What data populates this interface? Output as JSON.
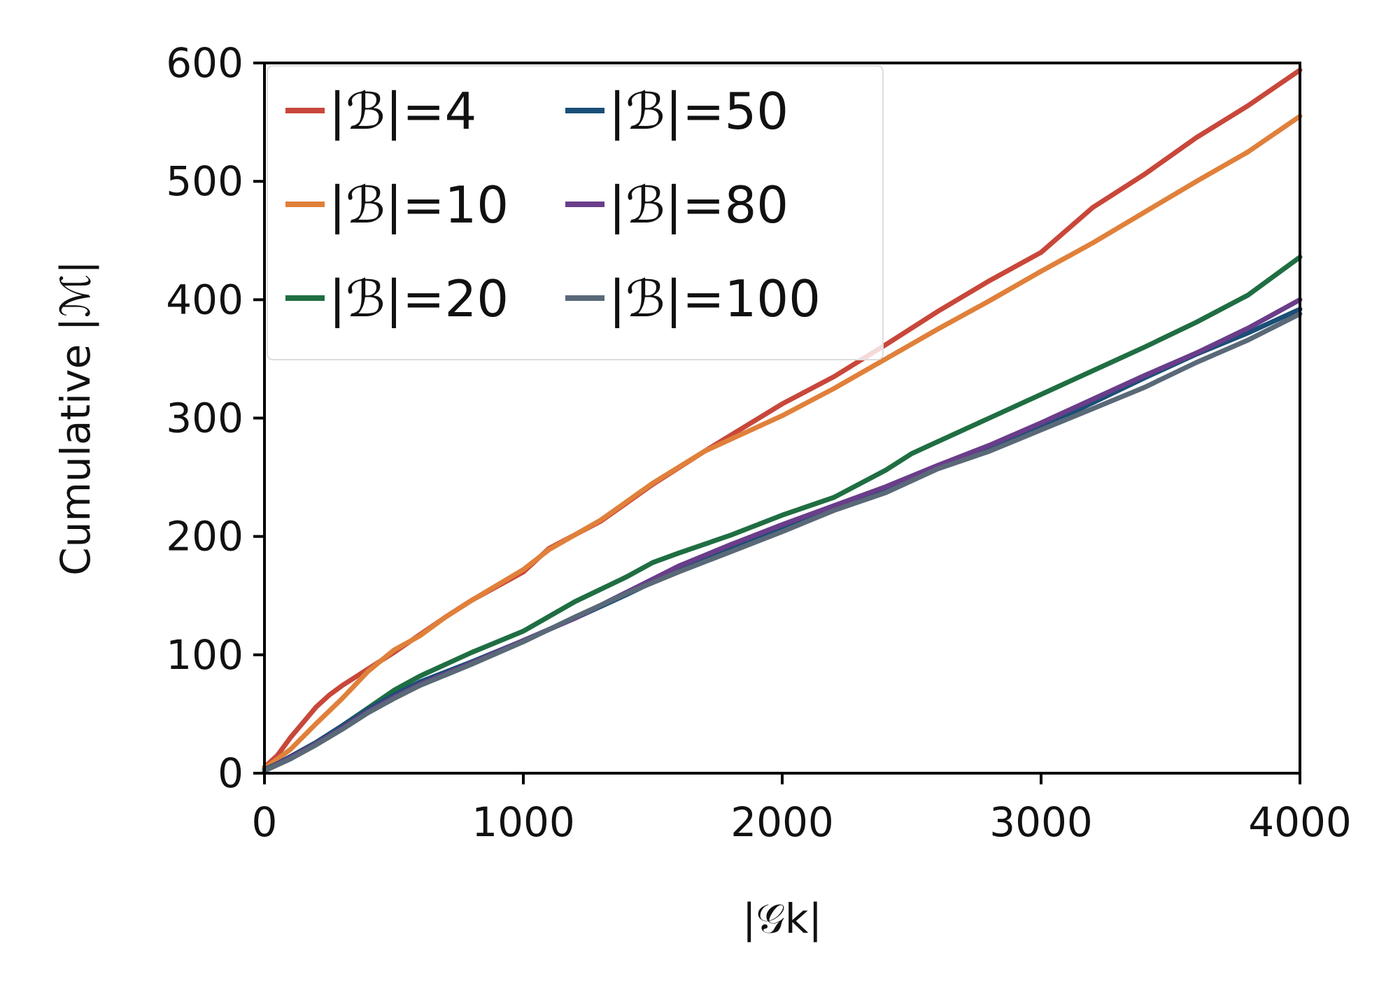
{
  "chart_data": {
    "type": "line",
    "xlabel": "|𝒢k|",
    "ylabel": "Cumulative |ℳ|",
    "xlim": [
      0,
      4000
    ],
    "ylim": [
      0,
      600
    ],
    "xticks": [
      0,
      1000,
      2000,
      3000,
      4000
    ],
    "yticks": [
      0,
      100,
      200,
      300,
      400,
      500,
      600
    ],
    "grid": false,
    "legend": {
      "placement": "top-left",
      "columns": 2
    },
    "series": [
      {
        "name": "|ℬ|=4",
        "color": "#c8473a",
        "x": [
          0,
          50,
          100,
          200,
          250,
          300,
          400,
          500,
          600,
          700,
          800,
          1000,
          1100,
          1300,
          1500,
          1700,
          2000,
          2200,
          2400,
          2600,
          2800,
          3000,
          3200,
          3400,
          3600,
          3800,
          4000
        ],
        "y": [
          5,
          15,
          30,
          56,
          66,
          74,
          88,
          102,
          117,
          132,
          146,
          170,
          190,
          213,
          244,
          272,
          312,
          335,
          362,
          390,
          416,
          440,
          478,
          506,
          537,
          564,
          594
        ]
      },
      {
        "name": "|ℬ|=10",
        "color": "#e0803a",
        "x": [
          0,
          100,
          200,
          300,
          400,
          500,
          600,
          700,
          800,
          1000,
          1100,
          1300,
          1500,
          1700,
          2000,
          2200,
          2400,
          2600,
          2800,
          3000,
          3200,
          3400,
          3600,
          3800,
          4000
        ],
        "y": [
          4,
          20,
          42,
          63,
          86,
          104,
          116,
          132,
          146,
          172,
          189,
          214,
          245,
          272,
          302,
          325,
          350,
          375,
          399,
          424,
          448,
          474,
          500,
          525,
          555
        ]
      },
      {
        "name": "|ℬ|=20",
        "color": "#1f6e42",
        "x": [
          0,
          100,
          200,
          300,
          400,
          500,
          600,
          800,
          1000,
          1200,
          1400,
          1500,
          1600,
          1800,
          2000,
          2200,
          2400,
          2500,
          2600,
          2800,
          3000,
          3200,
          3400,
          3600,
          3800,
          4000
        ],
        "y": [
          3,
          13,
          26,
          40,
          55,
          70,
          82,
          102,
          120,
          145,
          166,
          178,
          186,
          201,
          218,
          233,
          256,
          270,
          280,
          300,
          320,
          340,
          360,
          381,
          404,
          436
        ]
      },
      {
        "name": "|ℬ|=50",
        "color": "#1a4f78",
        "x": [
          0,
          100,
          200,
          300,
          400,
          500,
          600,
          800,
          1000,
          1200,
          1400,
          1600,
          1800,
          2000,
          2200,
          2400,
          2600,
          2800,
          3000,
          3200,
          3400,
          3600,
          3800,
          4000
        ],
        "y": [
          2,
          14,
          26,
          40,
          54,
          66,
          77,
          94,
          112,
          131,
          151,
          172,
          190,
          207,
          223,
          240,
          258,
          275,
          292,
          313,
          334,
          354,
          372,
          392
        ]
      },
      {
        "name": "|ℬ|=80",
        "color": "#6a3d8a",
        "x": [
          0,
          100,
          200,
          300,
          400,
          500,
          600,
          800,
          1000,
          1200,
          1400,
          1600,
          1800,
          2000,
          2200,
          2400,
          2600,
          2800,
          3000,
          3200,
          3400,
          3600,
          3800,
          4000
        ],
        "y": [
          2,
          13,
          25,
          38,
          52,
          64,
          75,
          93,
          112,
          131,
          153,
          175,
          193,
          210,
          226,
          242,
          260,
          277,
          296,
          316,
          336,
          355,
          376,
          400
        ]
      },
      {
        "name": "|ℬ|=100",
        "color": "#5a6978",
        "x": [
          0,
          100,
          200,
          300,
          400,
          500,
          600,
          800,
          1000,
          1200,
          1400,
          1600,
          1800,
          2000,
          2200,
          2400,
          2600,
          2800,
          3000,
          3200,
          3400,
          3600,
          3800,
          4000
        ],
        "y": [
          2,
          12,
          24,
          37,
          51,
          63,
          74,
          92,
          111,
          132,
          152,
          170,
          187,
          204,
          222,
          237,
          257,
          272,
          290,
          308,
          326,
          347,
          366,
          388
        ]
      }
    ]
  }
}
